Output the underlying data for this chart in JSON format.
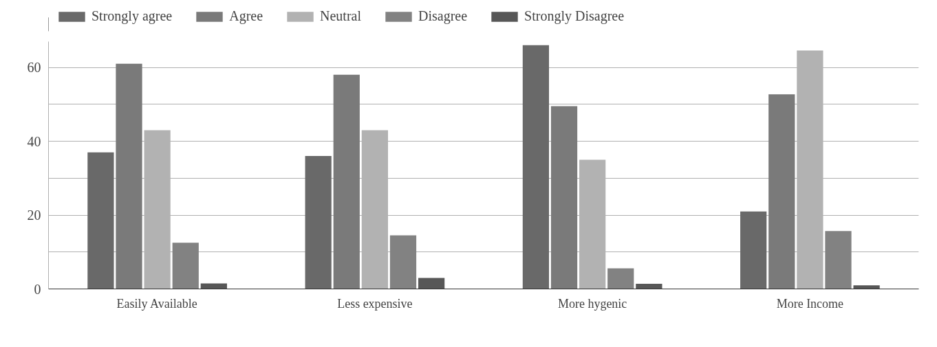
{
  "chart_data": {
    "type": "bar",
    "categories": [
      "Easily Available",
      "Less expensive",
      "More hygenic",
      "More Income"
    ],
    "series": [
      {
        "name": "Strongly agree",
        "color": "#696969",
        "values": [
          37,
          36,
          66,
          21
        ]
      },
      {
        "name": "Agree",
        "color": "#7a7a7a",
        "values": [
          61,
          58,
          49.5,
          52.7
        ]
      },
      {
        "name": "Neutral",
        "color": "#b2b2b2",
        "values": [
          43,
          43,
          35,
          64.6
        ]
      },
      {
        "name": "Disagree",
        "color": "#828282",
        "values": [
          12.5,
          14.5,
          5.6,
          15.7
        ]
      },
      {
        "name": "Strongly Disagree",
        "color": "#575757",
        "values": [
          1.5,
          3,
          1.4,
          1
        ]
      }
    ],
    "ylim": [
      0,
      67
    ],
    "yticks": [
      0,
      {
        "value": 10,
        "label": null
      },
      20,
      {
        "value": 30,
        "label": null
      },
      40,
      {
        "value": 50,
        "label": null
      },
      60
    ],
    "grid": "y",
    "legend": "top"
  }
}
